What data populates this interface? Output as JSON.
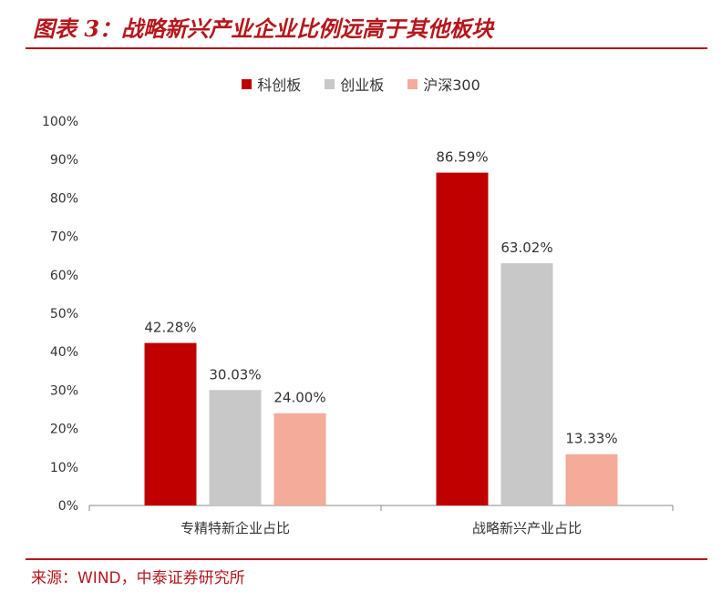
{
  "header": {
    "title": "图表 3：战略新兴产业企业比例远高于其他板块"
  },
  "footer": {
    "source": "来源：WIND，中泰证券研究所"
  },
  "colors": {
    "accent": "#b5171c"
  },
  "chart_data": {
    "type": "bar",
    "title": "",
    "categories": [
      "专精特新企业占比",
      "战略新兴产业占比"
    ],
    "series": [
      {
        "name": "科创板",
        "color": "#c00000",
        "values": [
          42.28,
          86.59
        ],
        "labels": [
          "42.28%",
          "86.59%"
        ]
      },
      {
        "name": "创业板",
        "color": "#c8c8c8",
        "values": [
          30.03,
          63.02
        ],
        "labels": [
          "30.03%",
          "63.02%"
        ]
      },
      {
        "name": "沪深300",
        "color": "#f4ab9a",
        "values": [
          24.0,
          13.33
        ],
        "labels": [
          "24.00%",
          "13.33%"
        ]
      }
    ],
    "ylim": [
      0,
      100
    ],
    "yticks": [
      "0%",
      "10%",
      "20%",
      "30%",
      "40%",
      "50%",
      "60%",
      "70%",
      "80%",
      "90%",
      "100%"
    ],
    "xlabel": "",
    "ylabel": "",
    "grid": false,
    "legend_position": "top-center"
  }
}
